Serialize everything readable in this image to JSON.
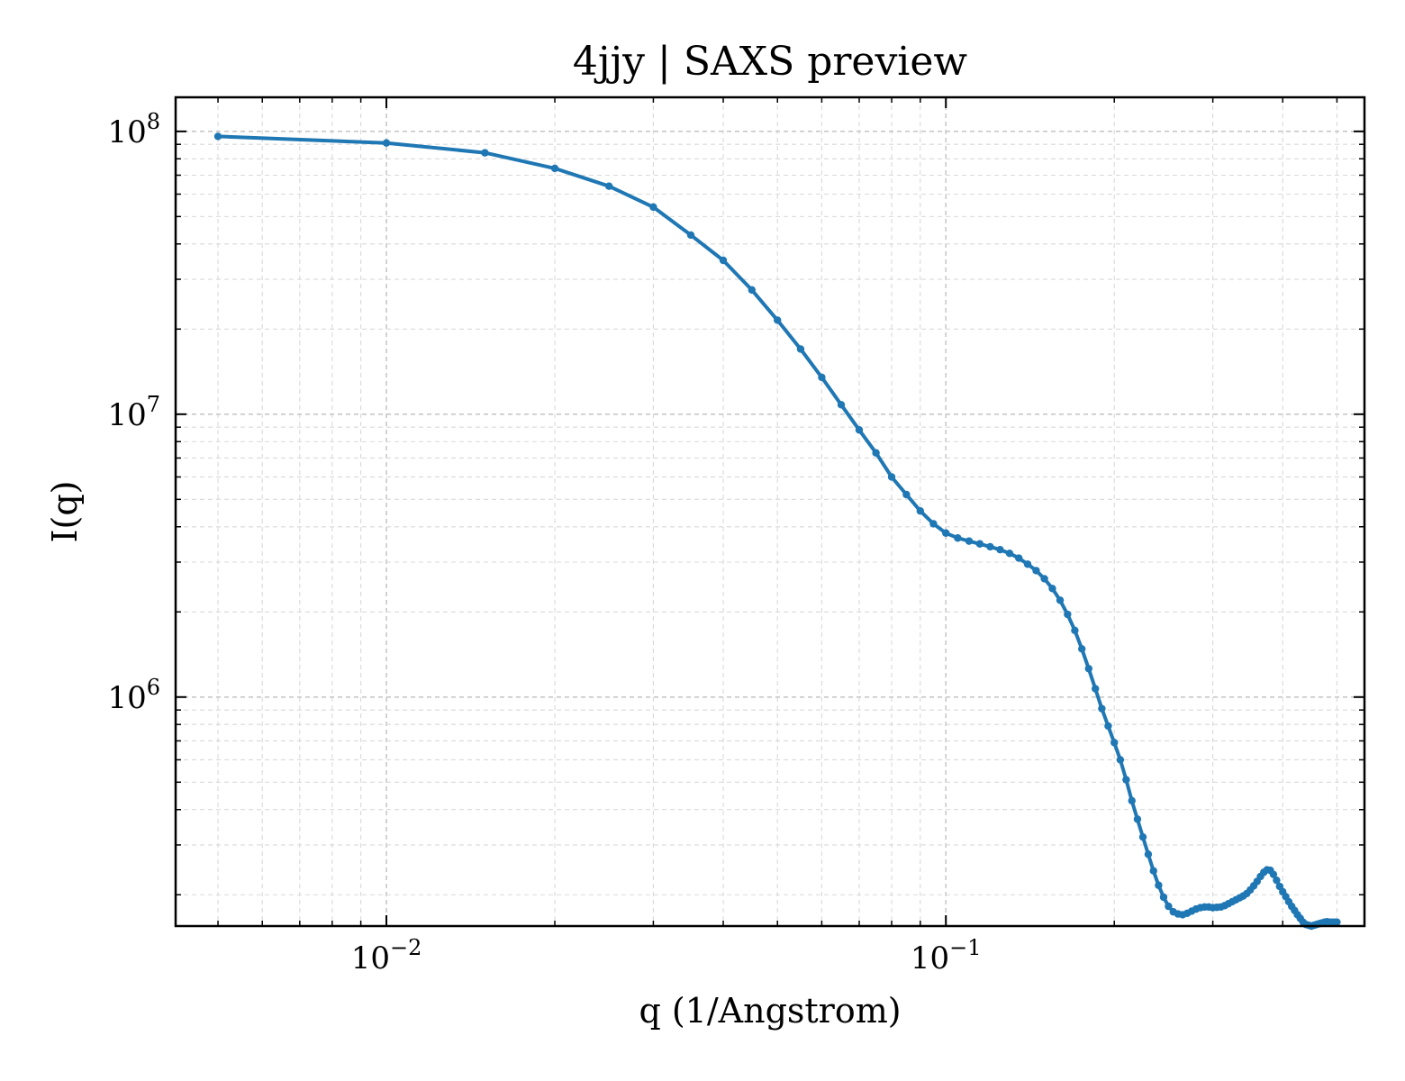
{
  "chart_data": {
    "type": "line",
    "title": "4jjy | SAXS preview",
    "xlabel": "q (1/Angstrom)",
    "ylabel": "I(q)",
    "xscale": "log",
    "yscale": "log",
    "xlim": [
      0.0042,
      0.56
    ],
    "ylim": [
      155000,
      132000000
    ],
    "grid": true,
    "line_color": "#1f77b4",
    "xticks": [
      {
        "value": 0.01,
        "base": "10",
        "exp": "−2"
      },
      {
        "value": 0.1,
        "base": "10",
        "exp": "−1"
      }
    ],
    "yticks": [
      {
        "value": 1000000,
        "base": "10",
        "exp": "6"
      },
      {
        "value": 10000000,
        "base": "10",
        "exp": "7"
      },
      {
        "value": 100000000,
        "base": "10",
        "exp": "8"
      }
    ],
    "series": [
      {
        "x": [
          0.005,
          0.01,
          0.015,
          0.02,
          0.025,
          0.03,
          0.035,
          0.04,
          0.045,
          0.05,
          0.055,
          0.06,
          0.065,
          0.07,
          0.075,
          0.08,
          0.085,
          0.09,
          0.095,
          0.1,
          0.105,
          0.11,
          0.115,
          0.12,
          0.125,
          0.13,
          0.135,
          0.14,
          0.145,
          0.15,
          0.155,
          0.16,
          0.165,
          0.17,
          0.175,
          0.18,
          0.185,
          0.19,
          0.195,
          0.2,
          0.205,
          0.21,
          0.215,
          0.22,
          0.225,
          0.23,
          0.235,
          0.24,
          0.245,
          0.25,
          0.255,
          0.26,
          0.265,
          0.27,
          0.275,
          0.28,
          0.285,
          0.29,
          0.295,
          0.3,
          0.305,
          0.31,
          0.315,
          0.32,
          0.325,
          0.33,
          0.335,
          0.34,
          0.345,
          0.35,
          0.355,
          0.36,
          0.365,
          0.37,
          0.375,
          0.38,
          0.385,
          0.39,
          0.395,
          0.4,
          0.405,
          0.41,
          0.415,
          0.42,
          0.425,
          0.43,
          0.435,
          0.44,
          0.445,
          0.45,
          0.455,
          0.46,
          0.465,
          0.47,
          0.475,
          0.48,
          0.485,
          0.49,
          0.495,
          0.5
        ],
        "y": [
          96000000,
          91000000,
          84000000,
          74000000,
          64000000,
          54000000,
          43000000,
          35000000,
          27500000,
          21500000,
          17000000,
          13500000,
          10800000,
          8800000,
          7300000,
          6000000,
          5200000,
          4550000,
          4100000,
          3800000,
          3650000,
          3560000,
          3480000,
          3400000,
          3320000,
          3220000,
          3100000,
          2950000,
          2800000,
          2620000,
          2420000,
          2200000,
          1960000,
          1720000,
          1480000,
          1260000,
          1070000,
          910000,
          790000,
          690000,
          600000,
          510000,
          430000,
          370000,
          320000,
          278000,
          243000,
          216000,
          196000,
          182000,
          174000,
          171000,
          170000,
          172000,
          175000,
          178000,
          180000,
          181000,
          181000,
          180000,
          180500,
          181000,
          183000,
          186000,
          189000,
          192000,
          195000,
          198000,
          202000,
          208000,
          215000,
          223000,
          232000,
          240000,
          245000,
          244000,
          236000,
          225000,
          214000,
          205000,
          197000,
          189000,
          182000,
          176000,
          170000,
          165000,
          160000,
          157000,
          156000,
          155000,
          156000,
          157000,
          158000,
          159000,
          160000,
          160500,
          160000,
          160000,
          160000,
          160000
        ]
      }
    ]
  }
}
